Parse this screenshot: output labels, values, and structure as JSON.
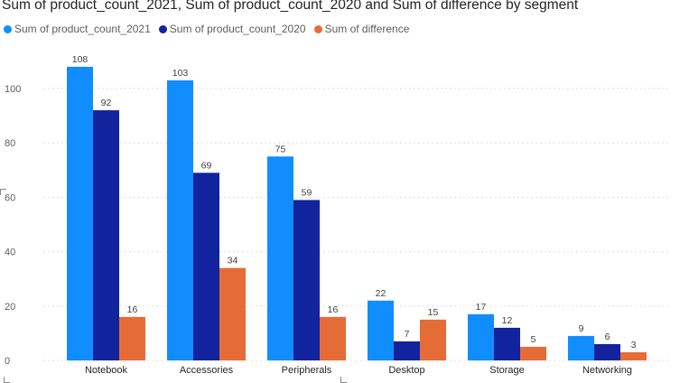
{
  "chart_data": {
    "type": "bar",
    "title": "Sum of product_count_2021, Sum of product_count_2020 and Sum of difference by segment",
    "xlabel": "",
    "ylabel": "",
    "categories": [
      "Notebook",
      "Accessories",
      "Peripherals",
      "Desktop",
      "Storage",
      "Networking"
    ],
    "series": [
      {
        "name": "Sum of product_count_2021",
        "color": "#118dff",
        "values": [
          108,
          103,
          75,
          22,
          17,
          9
        ]
      },
      {
        "name": "Sum of product_count_2020",
        "color": "#12239e",
        "values": [
          92,
          69,
          59,
          7,
          12,
          6
        ]
      },
      {
        "name": "Sum of difference",
        "color": "#e66c37",
        "values": [
          16,
          34,
          16,
          15,
          5,
          3
        ]
      }
    ],
    "ylim": [
      0,
      115
    ],
    "yticks": [
      0,
      20,
      40,
      60,
      80,
      100
    ],
    "grid": true,
    "legend_position": "top-left",
    "data_labels": true
  }
}
